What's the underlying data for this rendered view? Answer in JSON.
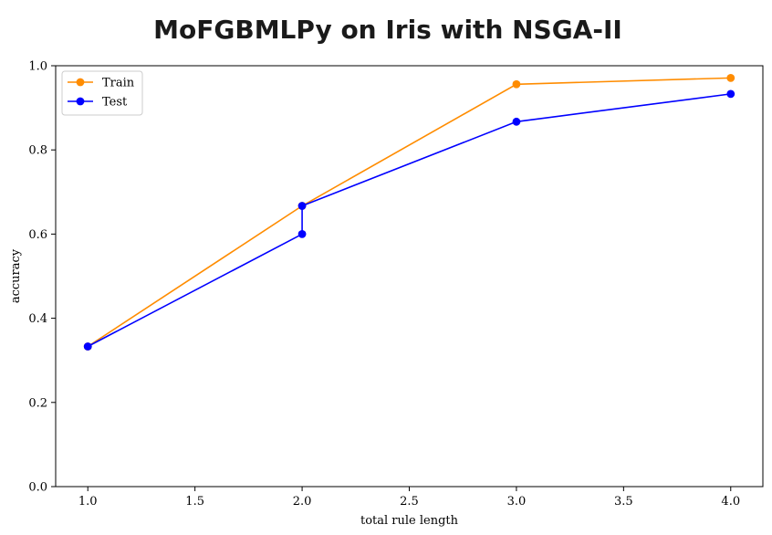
{
  "chart_data": {
    "type": "line",
    "title": "MoFGBMLPy on Iris with NSGA-II",
    "xlabel": "total rule length",
    "ylabel": "accuracy",
    "xlim": [
      0.85,
      4.15
    ],
    "ylim": [
      0.0,
      1.0
    ],
    "xticks": [
      1.0,
      1.5,
      2.0,
      2.5,
      3.0,
      3.5,
      4.0
    ],
    "xtick_labels": [
      "1.0",
      "1.5",
      "2.0",
      "2.5",
      "3.0",
      "3.5",
      "4.0"
    ],
    "yticks": [
      0.0,
      0.2,
      0.4,
      0.6,
      0.8,
      1.0
    ],
    "ytick_labels": [
      "0.0",
      "0.2",
      "0.4",
      "0.6",
      "0.8",
      "1.0"
    ],
    "grid": false,
    "legend_position": "top-left",
    "series": [
      {
        "name": "Train",
        "color": "#ff8c00",
        "x": [
          1.0,
          2.0,
          3.0,
          4.0
        ],
        "y": [
          0.333,
          0.667,
          0.956,
          0.971
        ]
      },
      {
        "name": "Test",
        "color": "#0000ff",
        "x": [
          1.0,
          2.0,
          2.0,
          3.0,
          4.0
        ],
        "y": [
          0.333,
          0.6,
          0.667,
          0.867,
          0.933
        ]
      }
    ]
  }
}
